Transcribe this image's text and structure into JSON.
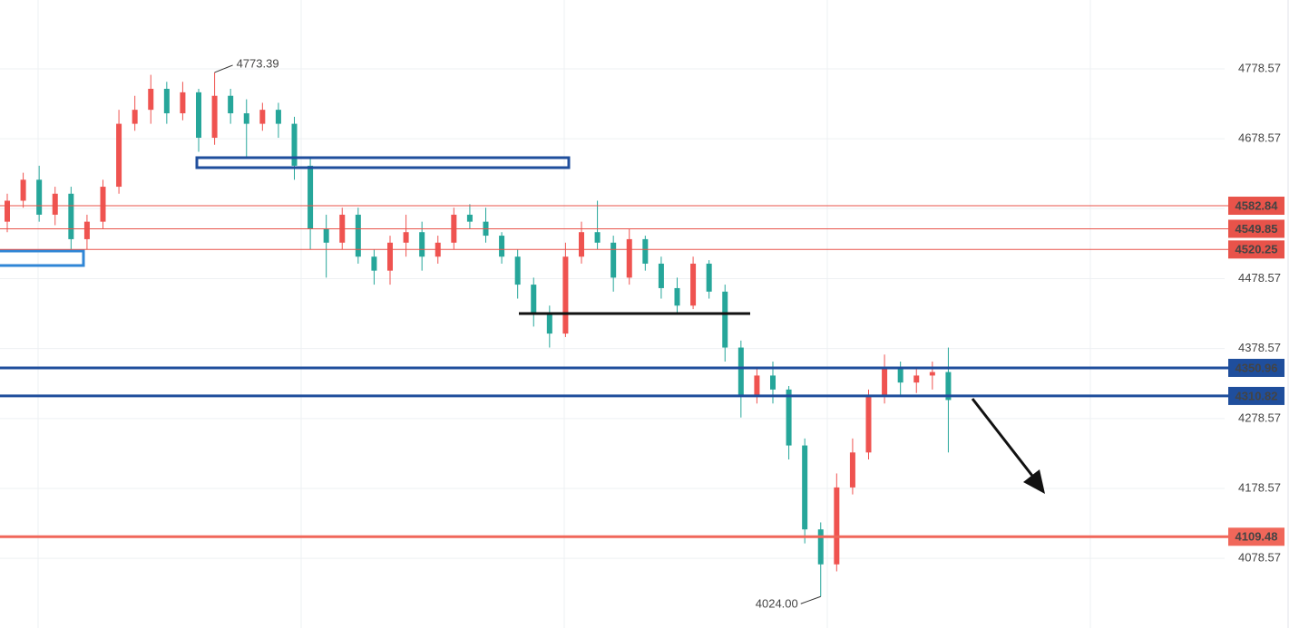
{
  "chart_data": {
    "type": "candlestick",
    "ylim": [
      3979,
      4877
    ],
    "yticks": [
      4078.57,
      4178.57,
      4278.57,
      4378.57,
      4478.57,
      4578.57,
      4678.57,
      4778.57
    ],
    "grid": true,
    "up_color": "#ef5350",
    "down_color": "#26a69a",
    "open": [
      4560,
      4590,
      4620,
      4570,
      4600,
      4535,
      4560,
      4610,
      4700,
      4720,
      4750,
      4715,
      4745,
      4680,
      4740,
      4715,
      4700,
      4720,
      4700,
      4640,
      4550,
      4530,
      4570,
      4510,
      4490,
      4530,
      4545,
      4510,
      4530,
      4570,
      4560,
      4540,
      4510,
      4470,
      4430,
      4400,
      4510,
      4545,
      4530,
      4480,
      4535,
      4500,
      4465,
      4440,
      4500,
      4460,
      4380,
      4310,
      4340,
      4320,
      4240,
      4120,
      4070,
      4180,
      4230,
      4310,
      4350,
      4330,
      4340,
      4345
    ],
    "high": [
      4600,
      4630,
      4640,
      4610,
      4610,
      4570,
      4620,
      4720,
      4740,
      4770,
      4760,
      4760,
      4750,
      4773.39,
      4750,
      4735,
      4730,
      4730,
      4710,
      4650,
      4570,
      4580,
      4580,
      4520,
      4540,
      4570,
      4560,
      4540,
      4580,
      4585,
      4580,
      4545,
      4520,
      4480,
      4440,
      4530,
      4560,
      4590,
      4540,
      4550,
      4540,
      4510,
      4480,
      4510,
      4505,
      4470,
      4390,
      4350,
      4360,
      4325,
      4250,
      4130,
      4200,
      4250,
      4320,
      4370,
      4360,
      4350,
      4360,
      4380
    ],
    "low": [
      4545,
      4580,
      4560,
      4555,
      4520,
      4520,
      4550,
      4600,
      4690,
      4700,
      4700,
      4705,
      4660,
      4670,
      4700,
      4650,
      4690,
      4680,
      4620,
      4520,
      4480,
      4520,
      4500,
      4470,
      4470,
      4510,
      4490,
      4500,
      4520,
      4550,
      4530,
      4500,
      4450,
      4410,
      4380,
      4395,
      4500,
      4520,
      4460,
      4470,
      4490,
      4450,
      4430,
      4435,
      4450,
      4360,
      4280,
      4300,
      4300,
      4220,
      4100,
      4024,
      4060,
      4170,
      4220,
      4300,
      4310,
      4315,
      4320,
      4230
    ],
    "close": [
      4590,
      4620,
      4570,
      4600,
      4535,
      4560,
      4610,
      4700,
      4720,
      4750,
      4715,
      4745,
      4680,
      4740,
      4715,
      4700,
      4720,
      4700,
      4640,
      4550,
      4530,
      4570,
      4510,
      4490,
      4530,
      4545,
      4510,
      4530,
      4570,
      4560,
      4540,
      4510,
      4470,
      4430,
      4400,
      4510,
      4545,
      4530,
      4480,
      4535,
      4500,
      4465,
      4440,
      4500,
      4460,
      4380,
      4310,
      4340,
      4320,
      4240,
      4120,
      4070,
      4180,
      4230,
      4310,
      4350,
      4330,
      4340,
      4345,
      4305
    ],
    "levels": [
      {
        "value": 4582.84,
        "color": "#e8534a",
        "width": 1
      },
      {
        "value": 4549.85,
        "color": "#e8534a",
        "width": 1
      },
      {
        "value": 4520.25,
        "color": "#e8534a",
        "width": 1
      },
      {
        "value": 4350.96,
        "color": "#1f4e9c",
        "width": 3
      },
      {
        "value": 4310.82,
        "color": "#1f4e9c",
        "width": 3
      },
      {
        "value": 4109.48,
        "color": "#f0675a",
        "width": 3
      }
    ],
    "high_label": 4773.39,
    "low_label": {
      "value": 4024,
      "label": "4024.00"
    }
  }
}
